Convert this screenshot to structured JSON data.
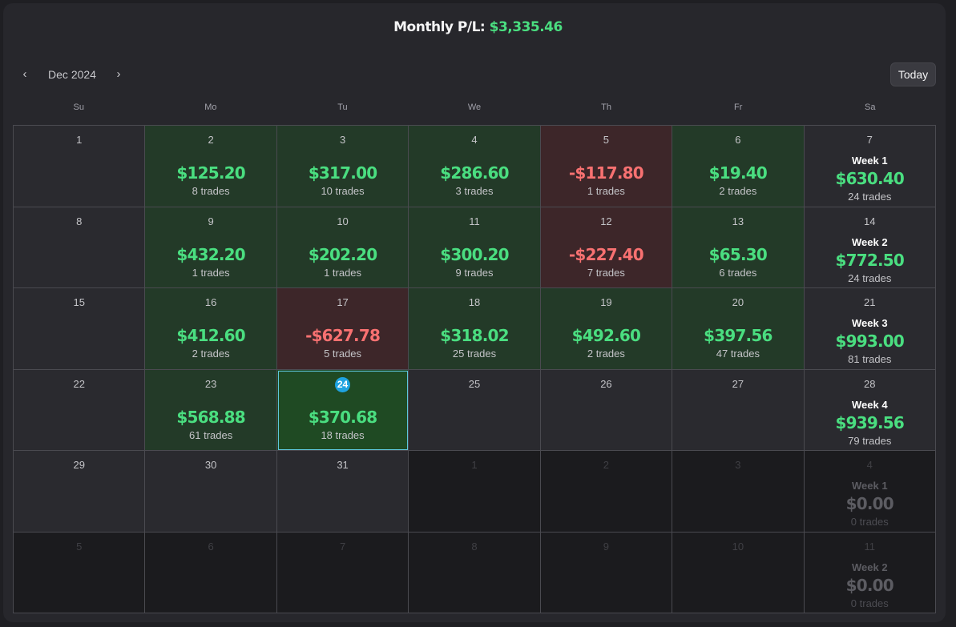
{
  "header": {
    "label": "Monthly P/L:",
    "value": "$3,335.46"
  },
  "nav": {
    "prev_icon": "‹",
    "next_icon": "›",
    "month": "Dec 2024",
    "today_label": "Today"
  },
  "weekdays": [
    "Su",
    "Mo",
    "Tu",
    "We",
    "Th",
    "Fr",
    "Sa"
  ],
  "colors": {
    "positive": "#4ade80",
    "negative": "#f87171",
    "positive_bg": "#233a28",
    "negative_bg": "#3d2629",
    "today_badge": "#1fa3e0"
  },
  "weeks": [
    {
      "days": [
        {
          "day": "1",
          "state": "empty"
        },
        {
          "day": "2",
          "state": "pos",
          "amount": "$125.20",
          "trades": "8 trades"
        },
        {
          "day": "3",
          "state": "pos",
          "amount": "$317.00",
          "trades": "10 trades"
        },
        {
          "day": "4",
          "state": "pos",
          "amount": "$286.60",
          "trades": "3 trades"
        },
        {
          "day": "5",
          "state": "neg",
          "amount": "-$117.80",
          "trades": "1 trades"
        },
        {
          "day": "6",
          "state": "pos",
          "amount": "$19.40",
          "trades": "2 trades"
        }
      ],
      "summary": {
        "day": "7",
        "label": "Week 1",
        "amount": "$630.40",
        "trades": "24 trades",
        "state": "empty"
      }
    },
    {
      "days": [
        {
          "day": "8",
          "state": "empty"
        },
        {
          "day": "9",
          "state": "pos",
          "amount": "$432.20",
          "trades": "1 trades"
        },
        {
          "day": "10",
          "state": "pos",
          "amount": "$202.20",
          "trades": "1 trades"
        },
        {
          "day": "11",
          "state": "pos",
          "amount": "$300.20",
          "trades": "9 trades"
        },
        {
          "day": "12",
          "state": "neg",
          "amount": "-$227.40",
          "trades": "7 trades"
        },
        {
          "day": "13",
          "state": "pos",
          "amount": "$65.30",
          "trades": "6 trades"
        }
      ],
      "summary": {
        "day": "14",
        "label": "Week 2",
        "amount": "$772.50",
        "trades": "24 trades",
        "state": "empty"
      }
    },
    {
      "days": [
        {
          "day": "15",
          "state": "empty"
        },
        {
          "day": "16",
          "state": "pos",
          "amount": "$412.60",
          "trades": "2 trades"
        },
        {
          "day": "17",
          "state": "neg",
          "amount": "-$627.78",
          "trades": "5 trades"
        },
        {
          "day": "18",
          "state": "pos",
          "amount": "$318.02",
          "trades": "25 trades"
        },
        {
          "day": "19",
          "state": "pos",
          "amount": "$492.60",
          "trades": "2 trades"
        },
        {
          "day": "20",
          "state": "pos",
          "amount": "$397.56",
          "trades": "47 trades"
        }
      ],
      "summary": {
        "day": "21",
        "label": "Week 3",
        "amount": "$993.00",
        "trades": "81 trades",
        "state": "empty"
      }
    },
    {
      "days": [
        {
          "day": "22",
          "state": "empty"
        },
        {
          "day": "23",
          "state": "pos",
          "amount": "$568.88",
          "trades": "61 trades"
        },
        {
          "day": "24",
          "state": "today",
          "amount": "$370.68",
          "trades": "18 trades"
        },
        {
          "day": "25",
          "state": "empty"
        },
        {
          "day": "26",
          "state": "empty"
        },
        {
          "day": "27",
          "state": "empty"
        }
      ],
      "summary": {
        "day": "28",
        "label": "Week 4",
        "amount": "$939.56",
        "trades": "79 trades",
        "state": "empty"
      }
    },
    {
      "days": [
        {
          "day": "29",
          "state": "empty"
        },
        {
          "day": "30",
          "state": "empty"
        },
        {
          "day": "31",
          "state": "empty"
        },
        {
          "day": "1",
          "state": "out"
        },
        {
          "day": "2",
          "state": "out"
        },
        {
          "day": "3",
          "state": "out"
        }
      ],
      "summary": {
        "day": "4",
        "label": "Week 1",
        "amount": "$0.00",
        "trades": "0 trades",
        "state": "out"
      }
    },
    {
      "days": [
        {
          "day": "5",
          "state": "out"
        },
        {
          "day": "6",
          "state": "out"
        },
        {
          "day": "7",
          "state": "out"
        },
        {
          "day": "8",
          "state": "out"
        },
        {
          "day": "9",
          "state": "out"
        },
        {
          "day": "10",
          "state": "out"
        }
      ],
      "summary": {
        "day": "11",
        "label": "Week 2",
        "amount": "$0.00",
        "trades": "0 trades",
        "state": "out"
      }
    }
  ]
}
